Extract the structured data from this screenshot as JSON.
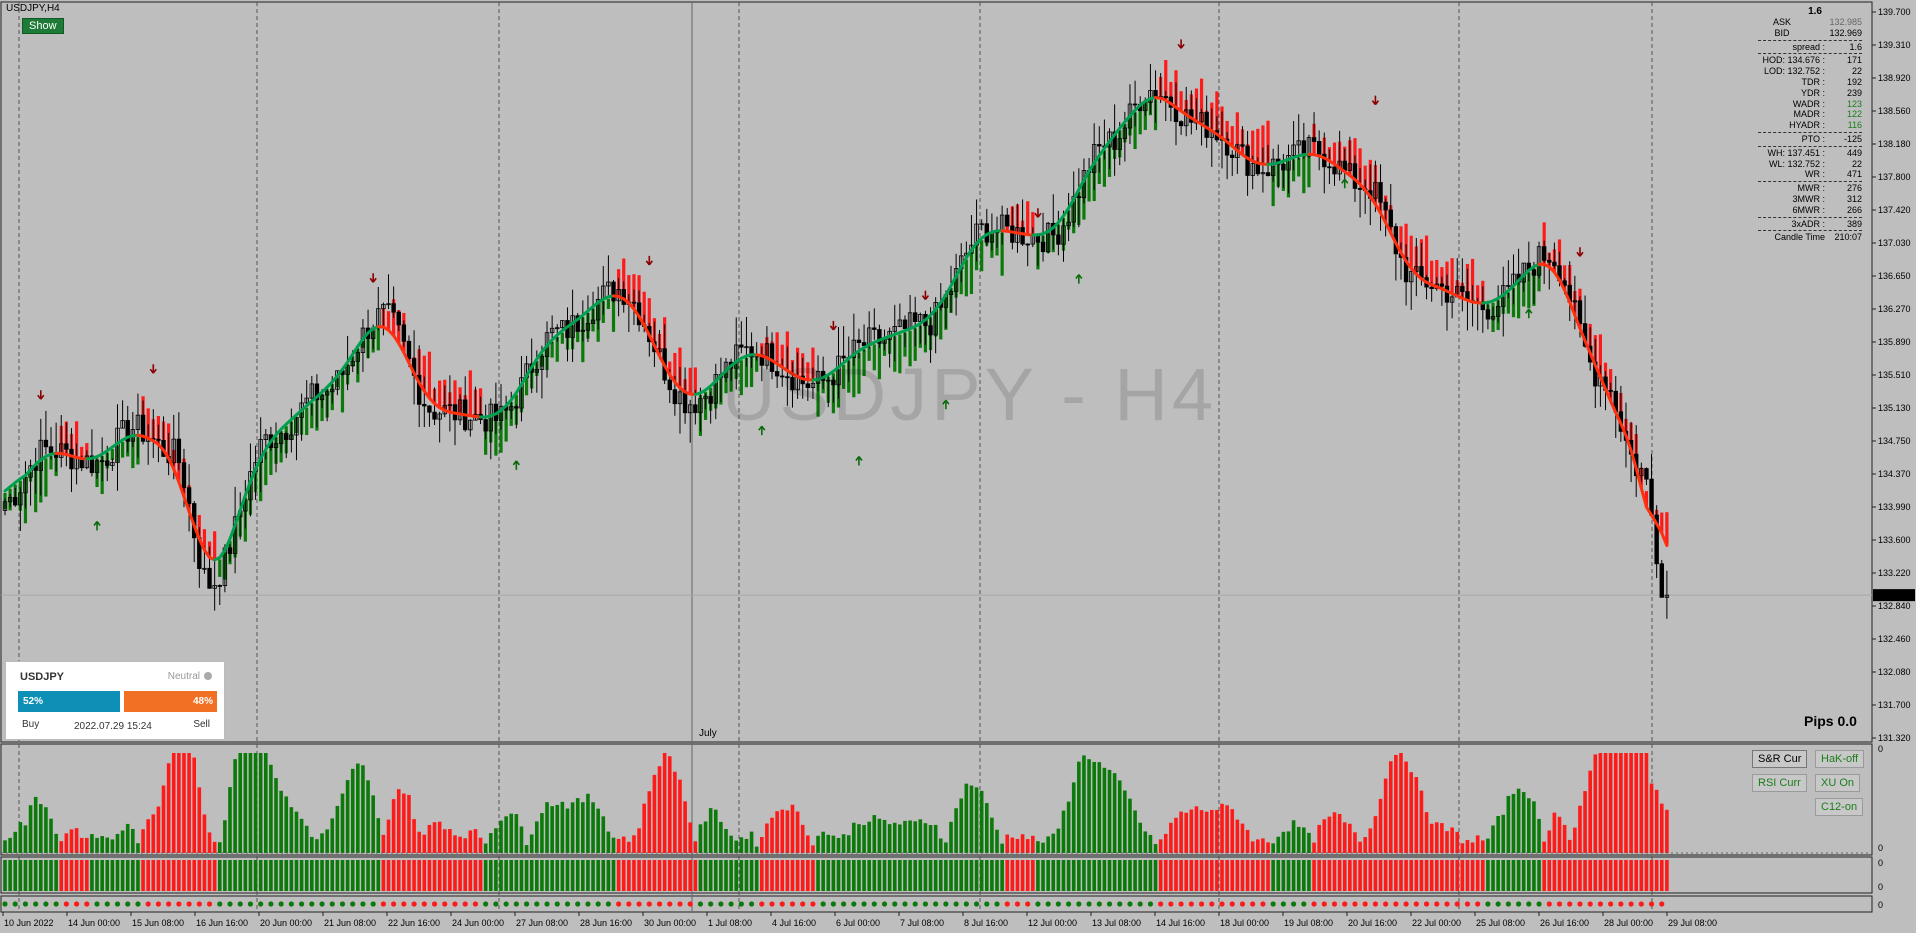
{
  "window": {
    "symbol_title": "USDJPY,H4",
    "show_button": "Show",
    "watermark": "USDJPY - H4",
    "month_label": "July"
  },
  "colors": {
    "bull": "#0b7a0b",
    "bear": "#ff1a1a",
    "ma_green": "#00a050",
    "ma_red": "#ff3010",
    "arrow_up": "#0b6b0b",
    "arrow_down": "#8b0000"
  },
  "price_axis": {
    "labels": [
      "139.700",
      "139.310",
      "138.920",
      "138.560",
      "138.180",
      "137.800",
      "137.420",
      "137.030",
      "136.650",
      "136.270",
      "135.890",
      "135.510",
      "135.130",
      "134.750",
      "134.370",
      "133.990",
      "133.600",
      "133.220",
      "132.840",
      "132.460",
      "132.080",
      "131.700",
      "131.320"
    ],
    "current_price": "132.969"
  },
  "time_axis": {
    "labels": [
      "10 Jun 2022",
      "14 Jun 00:00",
      "15 Jun 08:00",
      "16 Jun 16:00",
      "20 Jun 00:00",
      "21 Jun 08:00",
      "22 Jun 16:00",
      "24 Jun 00:00",
      "27 Jun 08:00",
      "28 Jun 16:00",
      "30 Jun 00:00",
      "1 Jul 08:00",
      "4 Jul 16:00",
      "6 Jul 00:00",
      "7 Jul 08:00",
      "8 Jul 16:00",
      "12 Jul 00:00",
      "13 Jul 08:00",
      "14 Jul 16:00",
      "18 Jul 00:00",
      "19 Jul 08:00",
      "20 Jul 16:00",
      "22 Jul 00:00",
      "25 Jul 08:00",
      "26 Jul 16:00",
      "28 Jul 00:00",
      "29 Jul 08:00"
    ]
  },
  "stats": {
    "spread_top": "1.6",
    "ask_label": "ASK",
    "ask": "132.985",
    "bid_label": "BID",
    "bid": "132.969",
    "rows": [
      {
        "k": "spread :",
        "v": "1.6",
        "sep": true
      },
      {
        "k": "HOD: 134.676 :",
        "v": "171",
        "sep": true
      },
      {
        "k": "LOD: 132.752 :",
        "v": "22"
      },
      {
        "k": "TDR :",
        "v": "192"
      },
      {
        "k": "YDR :",
        "v": "239"
      },
      {
        "k": "WADR :",
        "v": "123"
      },
      {
        "k": "MADR :",
        "v": "122"
      },
      {
        "k": "HYADR :",
        "v": "116"
      },
      {
        "k": "PTO :",
        "v": "-125",
        "sep": true
      },
      {
        "k": "WH: 137.451 :",
        "v": "449",
        "sep": true
      },
      {
        "k": "WL: 132.752 :",
        "v": "22"
      },
      {
        "k": "WR :",
        "v": "471"
      },
      {
        "k": "MWR :",
        "v": "276",
        "sep": true
      },
      {
        "k": "3MWR :",
        "v": "312"
      },
      {
        "k": "6MWR :",
        "v": "266"
      },
      {
        "k": "3xADR :",
        "v": "389",
        "sep": true
      },
      {
        "k": "Candle Time",
        "v": "210:07",
        "sep": true
      }
    ]
  },
  "sentiment": {
    "symbol": "USDJPY",
    "status": "Neutral",
    "buy_pct": "52%",
    "sell_pct": "48%",
    "buy_label": "Buy",
    "sell_label": "Sell",
    "timestamp": "2022.07.29 15:24"
  },
  "pips": "Pips 0.0",
  "panel_buttons": {
    "sr": "S&R Cur",
    "hak": "HaK-off",
    "rsi": "RSI Curr",
    "xu": "XU On",
    "c12": "C12-on"
  },
  "panel_scale": {
    "top": "0",
    "bottom": "0"
  },
  "chart_data": {
    "type": "candlestick",
    "symbol": "USDJPY",
    "timeframe": "H4",
    "ylim": [
      131.32,
      139.7
    ],
    "anchors": [
      {
        "t": 0,
        "p": 134.05
      },
      {
        "t": 8,
        "p": 134.65
      },
      {
        "t": 18,
        "p": 134.5
      },
      {
        "t": 25,
        "p": 134.9
      },
      {
        "t": 33,
        "p": 134.6
      },
      {
        "t": 40,
        "p": 133.1
      },
      {
        "t": 52,
        "p": 134.8
      },
      {
        "t": 62,
        "p": 135.3
      },
      {
        "t": 74,
        "p": 136.2
      },
      {
        "t": 84,
        "p": 135.1
      },
      {
        "t": 96,
        "p": 135.0
      },
      {
        "t": 108,
        "p": 136.0
      },
      {
        "t": 120,
        "p": 136.5
      },
      {
        "t": 134,
        "p": 135.2
      },
      {
        "t": 146,
        "p": 135.8
      },
      {
        "t": 158,
        "p": 135.4
      },
      {
        "t": 170,
        "p": 135.9
      },
      {
        "t": 180,
        "p": 136.1
      },
      {
        "t": 192,
        "p": 137.2
      },
      {
        "t": 204,
        "p": 137.1
      },
      {
        "t": 216,
        "p": 138.2
      },
      {
        "t": 224,
        "p": 138.8
      },
      {
        "t": 234,
        "p": 138.4
      },
      {
        "t": 246,
        "p": 137.9
      },
      {
        "t": 256,
        "p": 138.1
      },
      {
        "t": 266,
        "p": 137.7
      },
      {
        "t": 276,
        "p": 136.6
      },
      {
        "t": 290,
        "p": 136.3
      },
      {
        "t": 302,
        "p": 136.9
      },
      {
        "t": 312,
        "p": 135.5
      },
      {
        "t": 320,
        "p": 134.4
      },
      {
        "t": 325,
        "p": 132.97
      }
    ],
    "signals_up": [
      {
        "t": 18,
        "p": 133.75
      },
      {
        "t": 100,
        "p": 134.45
      },
      {
        "t": 148,
        "p": 134.85
      },
      {
        "t": 167,
        "p": 134.5
      },
      {
        "t": 184,
        "p": 135.15
      },
      {
        "t": 210,
        "p": 136.6
      },
      {
        "t": 262,
        "p": 137.7
      },
      {
        "t": 298,
        "p": 136.2
      }
    ],
    "signals_down": [
      {
        "t": 7,
        "p": 135.3
      },
      {
        "t": 29,
        "p": 135.6
      },
      {
        "t": 72,
        "p": 136.65
      },
      {
        "t": 126,
        "p": 136.85
      },
      {
        "t": 162,
        "p": 136.1
      },
      {
        "t": 180,
        "p": 136.45
      },
      {
        "t": 202,
        "p": 137.4
      },
      {
        "t": 230,
        "p": 139.35
      },
      {
        "t": 268,
        "p": 138.7
      },
      {
        "t": 308,
        "p": 136.95
      }
    ]
  }
}
